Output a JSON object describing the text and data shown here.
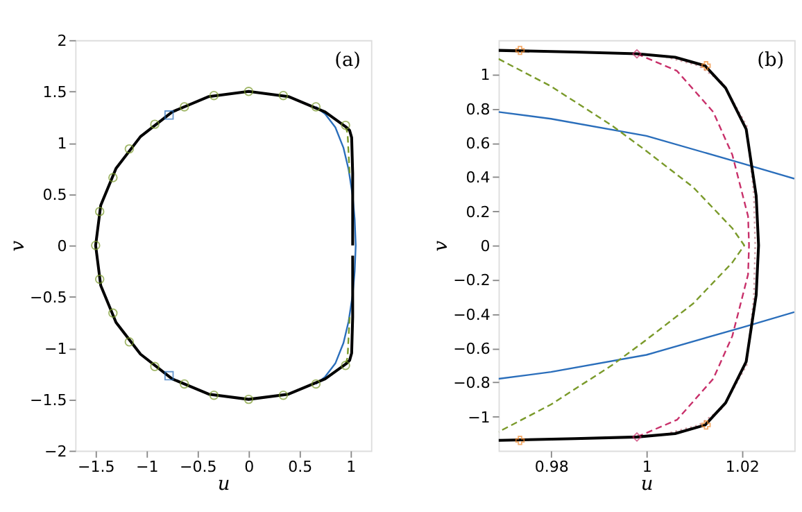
{
  "chart_data": [
    {
      "type": "line",
      "xlabel": "u",
      "ylabel": "v",
      "annotations": [
        "(a)"
      ],
      "xlim": [
        -1.7,
        1.2
      ],
      "ylim": [
        -2,
        2
      ],
      "xticks": [
        -1.5,
        -1,
        -0.5,
        0,
        0.5,
        1
      ],
      "yticks": [
        -2,
        -1.5,
        -1,
        -0.5,
        0,
        0.5,
        1,
        1.5,
        2
      ],
      "grid": false,
      "series": [
        {
          "color": "#2a6ebb",
          "line_style": "solid",
          "marker": "none",
          "x": [
            0.66,
            0.75,
            0.85,
            0.93,
            0.98,
            1.02,
            1.04,
            1.05,
            1.04,
            1.02,
            0.98,
            0.93,
            0.85,
            0.75,
            0.66
          ],
          "values": [
            -1.35,
            -1.28,
            -1.15,
            -0.95,
            -0.74,
            -0.48,
            -0.25,
            0,
            0.25,
            0.48,
            0.74,
            0.95,
            1.15,
            1.28,
            1.35
          ]
        },
        {
          "color": "#7a9a2a",
          "line_style": "dashed",
          "marker": "none",
          "x": [
            0.95,
            0.97,
            0.99
          ],
          "values": [
            1.16,
            1.09,
            0.7
          ]
        },
        {
          "color": "#7a9a2a",
          "line_style": "dashed",
          "marker": "none",
          "x": [
            0.99,
            0.97,
            0.95
          ],
          "values": [
            -0.7,
            -1.09,
            -1.16
          ]
        },
        {
          "color": "#000000",
          "line_style": "solid",
          "marker": "none",
          "x": [
            1.02,
            1.02,
            1.01,
            0.99,
            0.96,
            0.75,
            0.39,
            0,
            -0.39,
            -0.75,
            -1.06,
            -1.3,
            -1.45,
            -1.5,
            -1.45,
            -1.3,
            -1.06,
            -0.75,
            -0.39,
            0,
            0.39,
            0.75,
            0.96,
            0.99,
            1.01,
            1.02,
            1.02
          ],
          "values": [
            0,
            0.7,
            1.05,
            1.12,
            1.15,
            1.3,
            1.45,
            1.5,
            1.45,
            1.3,
            1.06,
            0.75,
            0.39,
            0,
            -0.39,
            -0.75,
            -1.06,
            -1.3,
            -1.45,
            -1.5,
            -1.45,
            -1.3,
            -1.15,
            -1.12,
            -1.05,
            -0.7,
            -0.1
          ]
        },
        {
          "type": "scatter",
          "color": "#7a9a2a",
          "marker": "circle",
          "x": [
            0,
            0.34,
            -0.34,
            0.66,
            -0.63,
            0.95,
            -0.92,
            -1.17,
            -1.33,
            -1.46,
            -1.5,
            -1.46,
            -1.33,
            -1.17,
            -0.92,
            0.95,
            -0.63,
            0.66,
            -0.34,
            0.34,
            0
          ],
          "values": [
            1.5,
            1.46,
            1.46,
            1.35,
            1.35,
            1.17,
            1.18,
            0.94,
            0.66,
            0.33,
            0,
            -0.33,
            -0.66,
            -0.94,
            -1.18,
            -1.17,
            -1.35,
            -1.35,
            -1.46,
            -1.46,
            -1.5
          ]
        },
        {
          "type": "scatter",
          "color": "#2a6ebb",
          "marker": "square",
          "x": [
            -0.78,
            -0.78
          ],
          "values": [
            1.27,
            -1.27
          ]
        }
      ]
    },
    {
      "type": "line",
      "xlabel": "u",
      "ylabel": "v",
      "annotations": [
        "(b)"
      ],
      "xlim": [
        0.969,
        1.031
      ],
      "ylim": [
        -1.2,
        1.2
      ],
      "xticks": [
        0.98,
        1,
        1.02
      ],
      "yticks": [
        -1,
        -0.8,
        -0.6,
        -0.4,
        -0.2,
        0,
        0.2,
        0.4,
        0.6,
        0.8,
        1
      ],
      "grid": false,
      "series": [
        {
          "color": "#2a6ebb",
          "line_style": "solid",
          "marker": "none",
          "x": [
            0.969,
            0.98,
            1,
            1.02,
            1.031
          ],
          "values": [
            0.78,
            0.74,
            0.64,
            0.48,
            0.39
          ]
        },
        {
          "color": "#2a6ebb",
          "line_style": "solid",
          "marker": "none",
          "x": [
            0.969,
            0.98,
            1,
            1.02,
            1.031
          ],
          "values": [
            -0.78,
            -0.74,
            -0.64,
            -0.48,
            -0.39
          ]
        },
        {
          "color": "#7a9a2a",
          "line_style": "dashed",
          "marker": "none",
          "x": [
            0.969,
            0.98,
            0.9928,
            0.9996,
            1.0098,
            1.018,
            1.0205,
            1.018,
            1.0098,
            0.9996,
            0.9928,
            0.98,
            0.969
          ],
          "values": [
            1.09,
            0.93,
            0.7,
            0.56,
            0.34,
            0.1,
            0,
            -0.1,
            -0.34,
            -0.56,
            -0.7,
            -0.93,
            -1.09
          ]
        },
        {
          "color": "#d4a0a8",
          "line_style": "dotted",
          "marker": "none",
          "x": [
            1.003,
            1.011,
            1.016,
            1.021,
            1.0225,
            1.0228,
            1.0225,
            1.021,
            1.016,
            1.011,
            1.003
          ],
          "values": [
            1.11,
            1.05,
            0.95,
            0.7,
            0.3,
            0,
            -0.3,
            -0.7,
            -0.95,
            -1.05,
            -1.11
          ]
        },
        {
          "color": "#c8306a",
          "line_style": "dashed",
          "marker": "none",
          "x": [
            0.998,
            1.0064,
            1.014,
            1.018,
            1.0213,
            1.0215,
            1.0213,
            1.018,
            1.014,
            1.0064,
            0.998
          ],
          "values": [
            1.12,
            1.02,
            0.78,
            0.53,
            0.17,
            0,
            -0.17,
            -0.53,
            -0.78,
            -1.02,
            -1.12
          ]
        },
        {
          "color": "#000000",
          "line_style": "solid",
          "marker": "none",
          "x": [
            0.969,
            0.985,
            0.998,
            1.006,
            1.0123,
            1.0166,
            1.0209,
            1.023,
            1.0235,
            1.023,
            1.0209,
            1.0166,
            1.0123,
            1.006,
            0.998,
            0.985,
            0.969
          ],
          "values": [
            1.14,
            1.13,
            1.12,
            1.1,
            1.05,
            0.92,
            0.68,
            0.29,
            0,
            -0.29,
            -0.68,
            -0.92,
            -1.05,
            -1.1,
            -1.12,
            -1.13,
            -1.14
          ]
        },
        {
          "type": "scatter",
          "color": "#c8306a",
          "marker": "diamond",
          "x": [
            0.998,
            0.998
          ],
          "values": [
            1.12,
            -1.12
          ]
        },
        {
          "type": "scatter",
          "color": "#f08a30",
          "marker": "cross",
          "x": [
            0.9735,
            1.0125,
            0.9735,
            1.0125
          ],
          "values": [
            1.14,
            1.05,
            -1.14,
            -1.05
          ]
        }
      ]
    }
  ]
}
